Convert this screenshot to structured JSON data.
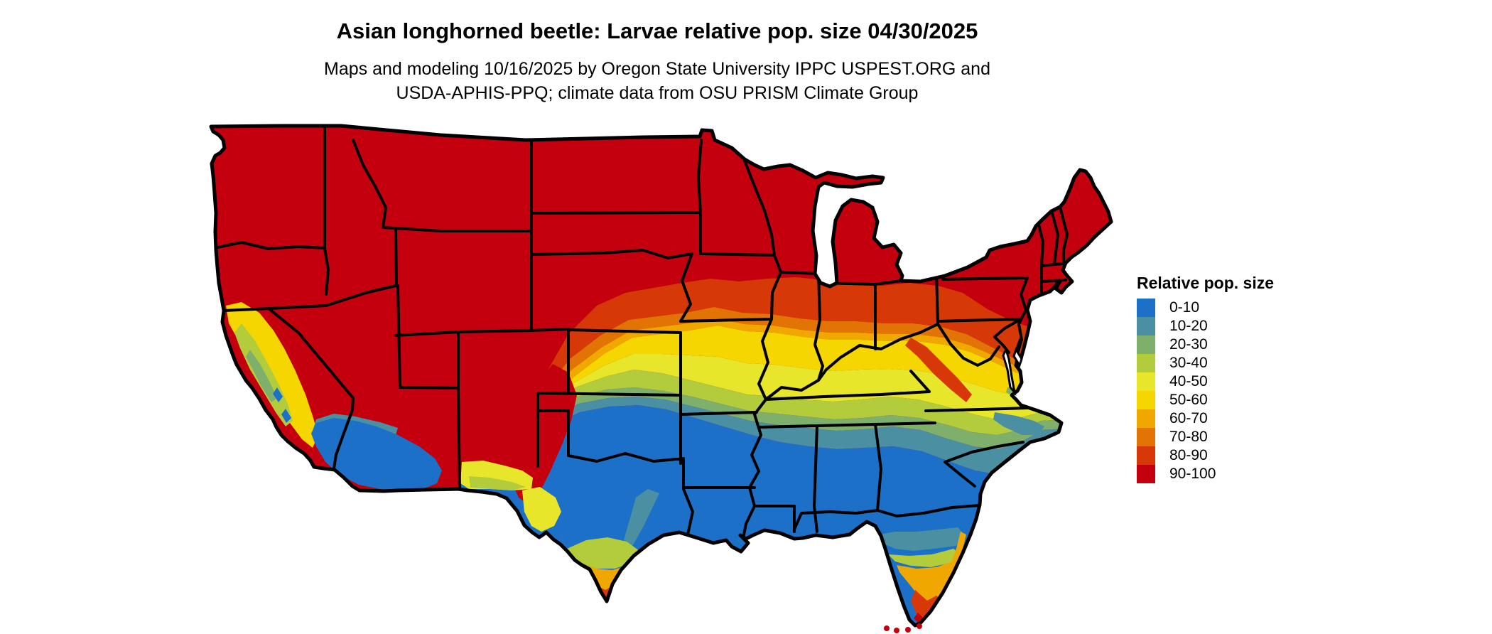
{
  "title": "Asian longhorned beetle: Larvae relative pop. size 04/30/2025",
  "subtitle_line1": "Maps and modeling 10/16/2025 by Oregon State University IPPC USPEST.ORG and",
  "subtitle_line2": "USDA-APHIS-PPQ; climate data from OSU PRISM Climate Group",
  "legend": {
    "title": "Relative pop. size",
    "classes": [
      {
        "label": "0-10",
        "color": "#1c70c8"
      },
      {
        "label": "10-20",
        "color": "#4b90a2"
      },
      {
        "label": "20-30",
        "color": "#7eb06c"
      },
      {
        "label": "30-40",
        "color": "#b3cc3c"
      },
      {
        "label": "40-50",
        "color": "#e8e62a"
      },
      {
        "label": "50-60",
        "color": "#f6d600"
      },
      {
        "label": "60-70",
        "color": "#f0a800"
      },
      {
        "label": "70-80",
        "color": "#e27406"
      },
      {
        "label": "80-90",
        "color": "#d63808"
      },
      {
        "label": "90-100",
        "color": "#c4000e"
      }
    ]
  },
  "map_colors": {
    "state_border": "#000000",
    "water_background": "#ffffff"
  }
}
